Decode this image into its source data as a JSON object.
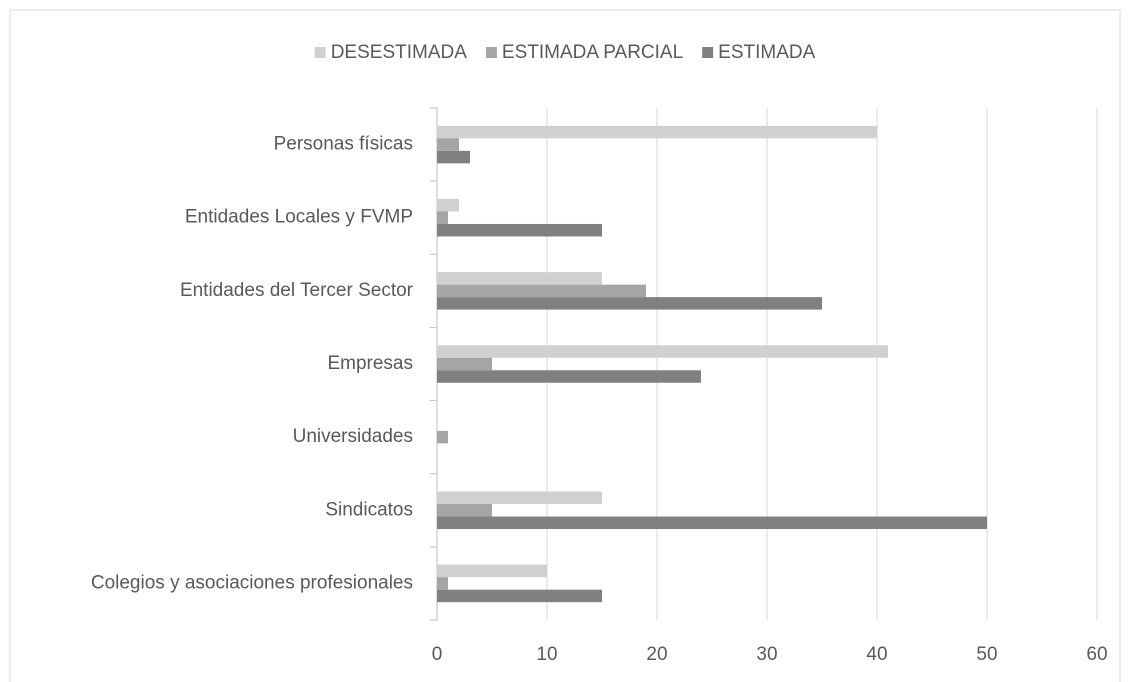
{
  "chart_data": {
    "type": "hbar",
    "categories": [
      "Personas físicas",
      "Entidades Locales y FVMP",
      "Entidades del Tercer Sector",
      "Empresas",
      "Universidades",
      "Sindicatos",
      "Colegios y asociaciones profesionales"
    ],
    "series": [
      {
        "name": "DESESTIMADA",
        "color": "#d0d0d0",
        "values": [
          40,
          2,
          15,
          41,
          0,
          15,
          10
        ]
      },
      {
        "name": "ESTIMADA PARCIAL",
        "color": "#a5a5a5",
        "values": [
          2,
          1,
          19,
          5,
          1,
          5,
          1
        ]
      },
      {
        "name": "ESTIMADA",
        "color": "#808080",
        "values": [
          3,
          15,
          35,
          24,
          0,
          50,
          15
        ]
      }
    ],
    "xlim": [
      0,
      60
    ],
    "xticks": [
      0,
      10,
      20,
      30,
      40,
      50,
      60
    ],
    "grid": true,
    "legend": "top"
  }
}
